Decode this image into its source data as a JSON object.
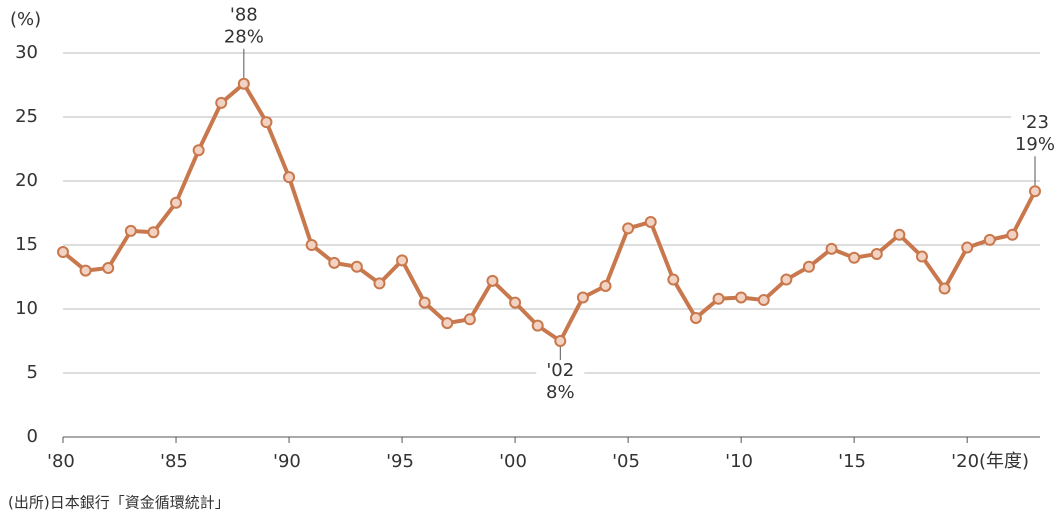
{
  "chart_data": {
    "type": "line",
    "y_label": "(%)",
    "source": "(出所)日本銀行「資金循環統計」",
    "x": [
      1980,
      1981,
      1982,
      1983,
      1984,
      1985,
      1986,
      1987,
      1988,
      1989,
      1990,
      1991,
      1992,
      1993,
      1994,
      1995,
      1996,
      1997,
      1998,
      1999,
      2000,
      2001,
      2002,
      2003,
      2004,
      2005,
      2006,
      2007,
      2008,
      2009,
      2010,
      2011,
      2012,
      2013,
      2014,
      2015,
      2016,
      2017,
      2018,
      2019,
      2020,
      2021,
      2022,
      2023
    ],
    "series": [
      {
        "name": "",
        "color": "#c8784c",
        "marker_fill": "#f2d2c2",
        "values": [
          14.45,
          13.0,
          13.2,
          16.1,
          16.0,
          18.3,
          22.4,
          26.1,
          27.6,
          24.6,
          20.3,
          15.0,
          13.6,
          13.3,
          12.0,
          13.8,
          10.5,
          8.9,
          9.2,
          12.2,
          10.5,
          8.7,
          7.5,
          10.9,
          11.8,
          16.3,
          16.8,
          12.3,
          9.3,
          10.8,
          10.9,
          10.7,
          12.3,
          13.3,
          14.7,
          14.0,
          14.3,
          15.8,
          14.1,
          11.6,
          14.8,
          15.4,
          15.8,
          19.2
        ],
        "value_labels": [
          null,
          null,
          null,
          null,
          null,
          null,
          null,
          null,
          "28%",
          null,
          null,
          null,
          null,
          null,
          null,
          null,
          null,
          null,
          null,
          null,
          null,
          null,
          "8%",
          null,
          null,
          null,
          null,
          null,
          null,
          null,
          null,
          null,
          null,
          null,
          null,
          null,
          null,
          null,
          null,
          null,
          null,
          null,
          null,
          "19%"
        ]
      }
    ],
    "annotations": [
      {
        "x": 1988,
        "text": "'88",
        "position": "above"
      },
      {
        "x": 2002,
        "text": "'02",
        "position": "below"
      },
      {
        "x": 2023,
        "text": "'23",
        "position": "above"
      }
    ],
    "xlim": [
      1980,
      2023
    ],
    "xticks": [
      {
        "value": 1980,
        "label": "'80"
      },
      {
        "value": 1985,
        "label": "'85"
      },
      {
        "value": 1990,
        "label": "'90"
      },
      {
        "value": 1995,
        "label": "'95"
      },
      {
        "value": 2000,
        "label": "'00"
      },
      {
        "value": 2005,
        "label": "'05"
      },
      {
        "value": 2010,
        "label": "'10"
      },
      {
        "value": 2015,
        "label": "'15"
      },
      {
        "value": 2020,
        "label": "'20(年度)"
      }
    ],
    "ylim": [
      0,
      30
    ],
    "yticks": [
      0,
      5,
      10,
      15,
      20,
      25,
      30
    ],
    "grid": true
  }
}
